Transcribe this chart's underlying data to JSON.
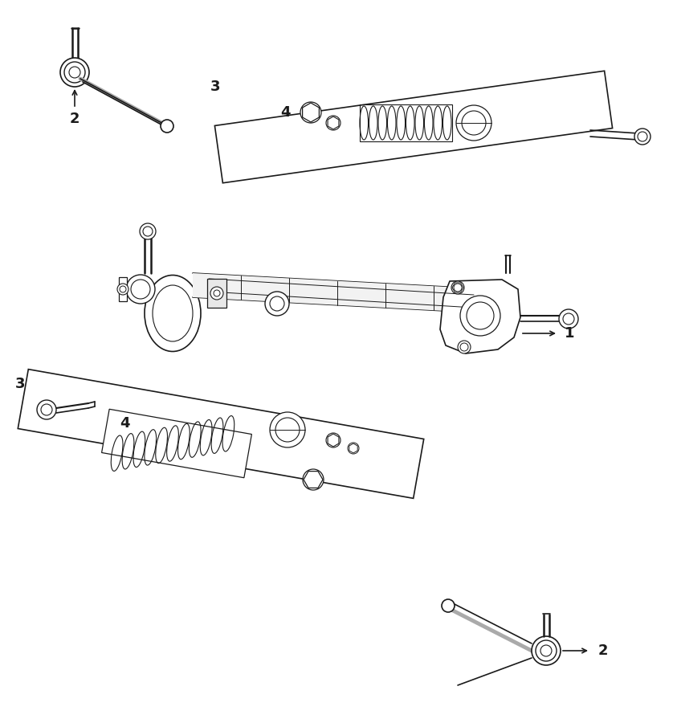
{
  "bg_color": "#ffffff",
  "line_color": "#1a1a1a",
  "fig_width": 8.43,
  "fig_height": 9.0,
  "dpi": 100
}
